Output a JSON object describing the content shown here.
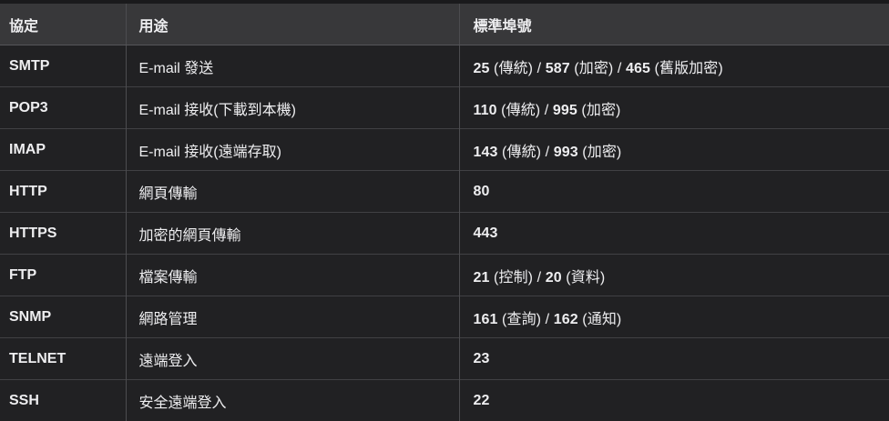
{
  "colors": {
    "page-bg": "#1a1a1c",
    "header-bg": "#38383a",
    "row-bg": "#212123",
    "v-border": "#4c4c4f",
    "h-border": "#414144",
    "header-border": "#56565a",
    "text": "#eeeef0"
  },
  "table": {
    "columns": [
      {
        "key": "protocol",
        "label": "協定"
      },
      {
        "key": "usage",
        "label": "用途"
      },
      {
        "key": "ports",
        "label": "標準埠號"
      }
    ],
    "rows": [
      {
        "protocol": "SMTP",
        "usage": "E-mail 發送",
        "ports": [
          {
            "text": "25",
            "bold": true
          },
          {
            "text": " (傳統) / ",
            "bold": false
          },
          {
            "text": "587",
            "bold": true
          },
          {
            "text": " (加密) / ",
            "bold": false
          },
          {
            "text": "465",
            "bold": true
          },
          {
            "text": " (舊版加密)",
            "bold": false
          }
        ]
      },
      {
        "protocol": "POP3",
        "usage": "E-mail 接收(下載到本機)",
        "ports": [
          {
            "text": "110",
            "bold": true
          },
          {
            "text": " (傳統) / ",
            "bold": false
          },
          {
            "text": "995",
            "bold": true
          },
          {
            "text": " (加密)",
            "bold": false
          }
        ]
      },
      {
        "protocol": "IMAP",
        "usage": "E-mail 接收(遠端存取)",
        "ports": [
          {
            "text": "143",
            "bold": true
          },
          {
            "text": " (傳統) / ",
            "bold": false
          },
          {
            "text": "993",
            "bold": true
          },
          {
            "text": " (加密)",
            "bold": false
          }
        ]
      },
      {
        "protocol": "HTTP",
        "usage": "網頁傳輸",
        "ports": [
          {
            "text": "80",
            "bold": true
          }
        ]
      },
      {
        "protocol": "HTTPS",
        "usage": "加密的網頁傳輸",
        "ports": [
          {
            "text": "443",
            "bold": true
          }
        ]
      },
      {
        "protocol": "FTP",
        "usage": "檔案傳輸",
        "ports": [
          {
            "text": "21",
            "bold": true
          },
          {
            "text": " (控制) / ",
            "bold": false
          },
          {
            "text": "20",
            "bold": true
          },
          {
            "text": " (資料)",
            "bold": false
          }
        ]
      },
      {
        "protocol": "SNMP",
        "usage": "網路管理",
        "ports": [
          {
            "text": "161",
            "bold": true
          },
          {
            "text": " (查詢) / ",
            "bold": false
          },
          {
            "text": "162",
            "bold": true
          },
          {
            "text": " (通知)",
            "bold": false
          }
        ]
      },
      {
        "protocol": "TELNET",
        "usage": "遠端登入",
        "ports": [
          {
            "text": "23",
            "bold": true
          }
        ]
      },
      {
        "protocol": "SSH",
        "usage": "安全遠端登入",
        "ports": [
          {
            "text": "22",
            "bold": true
          }
        ]
      }
    ]
  }
}
